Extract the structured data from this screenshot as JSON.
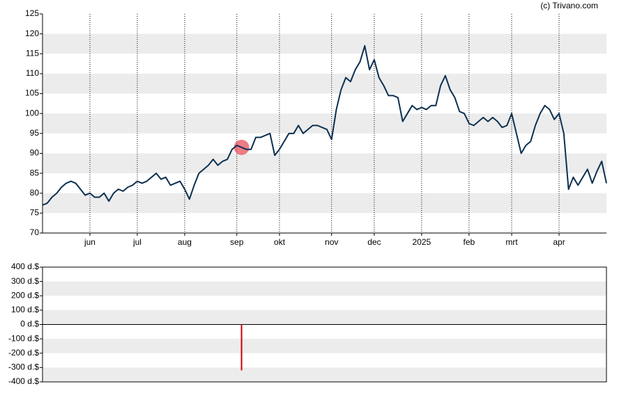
{
  "credit": "(c) Trivano.com",
  "chart_data": [
    {
      "type": "line",
      "color": "#0b3050",
      "marker_color": "#e8505c",
      "ylim": [
        70,
        125
      ],
      "yticks": [
        70,
        75,
        80,
        85,
        90,
        95,
        100,
        105,
        110,
        115,
        120,
        125
      ],
      "grid": true,
      "categories": [
        null,
        null,
        null,
        null,
        null,
        null,
        null,
        null,
        null,
        null,
        "jun",
        null,
        null,
        null,
        null,
        null,
        null,
        null,
        null,
        null,
        "jul",
        null,
        null,
        null,
        null,
        null,
        null,
        null,
        null,
        null,
        "aug",
        null,
        null,
        null,
        null,
        null,
        null,
        null,
        null,
        null,
        null,
        "sep",
        null,
        null,
        null,
        null,
        null,
        null,
        null,
        null,
        "okt",
        null,
        null,
        null,
        null,
        null,
        null,
        null,
        null,
        null,
        null,
        "nov",
        null,
        null,
        null,
        null,
        null,
        null,
        null,
        null,
        "dec",
        null,
        null,
        null,
        null,
        null,
        null,
        null,
        null,
        null,
        "2025",
        null,
        null,
        null,
        null,
        null,
        null,
        null,
        null,
        null,
        "feb",
        null,
        null,
        null,
        null,
        null,
        null,
        null,
        null,
        "mrt",
        null,
        null,
        null,
        null,
        null,
        null,
        null,
        null,
        null,
        "apr",
        null,
        null,
        null,
        null,
        null,
        null,
        null,
        null,
        null,
        null
      ],
      "values": [
        77,
        77.5,
        79,
        80,
        81.5,
        82.5,
        83,
        82.5,
        81,
        79.5,
        80,
        79,
        79,
        80,
        78,
        80,
        81,
        80.5,
        81.5,
        82,
        83,
        82.5,
        83,
        84,
        85,
        83.5,
        84,
        82,
        82.5,
        83,
        81,
        78.5,
        82,
        85,
        86,
        87,
        88.5,
        87,
        88,
        88.5,
        91,
        92,
        91.5,
        91,
        91,
        94,
        94,
        94.5,
        95,
        89.5,
        91,
        93,
        95,
        95,
        97,
        95,
        96,
        97,
        97,
        96.5,
        96,
        93.5,
        101,
        106,
        109,
        108,
        111,
        113,
        117,
        111,
        113.5,
        109,
        107,
        104.5,
        104.5,
        104,
        98,
        100,
        102,
        101,
        101.5,
        101,
        102,
        102,
        107,
        109.5,
        106,
        104,
        100.5,
        100,
        97.5,
        97,
        98,
        99,
        98,
        99,
        98,
        96.5,
        97,
        100,
        95,
        90,
        92,
        93,
        97,
        100,
        102,
        101,
        98.5,
        100,
        95,
        81,
        84,
        82,
        84,
        86,
        82.5,
        85.5,
        88,
        82.5
      ]
    },
    {
      "type": "bar",
      "color": "#cc0000",
      "ylim": [
        -400,
        400
      ],
      "yticks": [
        {
          "value": -400,
          "label": "-400 d.$"
        },
        {
          "value": -300,
          "label": "-300 d.$"
        },
        {
          "value": -200,
          "label": "-200 d.$"
        },
        {
          "value": -100,
          "label": "-100 d.$"
        },
        {
          "value": 0,
          "label": "0 d.$"
        },
        {
          "value": 100,
          "label": "100 d.$"
        },
        {
          "value": 200,
          "label": "200 d.$"
        },
        {
          "value": 300,
          "label": "300 d.$"
        },
        {
          "value": 400,
          "label": "400 d.$"
        }
      ],
      "grid": true,
      "values": [
        null,
        null,
        null,
        null,
        null,
        null,
        null,
        null,
        null,
        null,
        null,
        null,
        null,
        null,
        null,
        null,
        null,
        null,
        null,
        null,
        null,
        null,
        null,
        null,
        null,
        null,
        null,
        null,
        null,
        null,
        null,
        null,
        null,
        null,
        null,
        null,
        null,
        null,
        null,
        null,
        null,
        null,
        -320,
        null,
        null,
        null,
        null,
        null,
        null,
        null,
        null,
        null,
        null,
        null,
        null,
        null,
        null,
        null,
        null,
        null,
        null,
        null,
        null,
        null,
        null,
        null,
        null,
        null,
        null,
        null,
        null,
        null,
        null,
        null,
        null,
        null,
        null,
        null,
        null,
        null,
        null,
        null,
        null,
        null,
        null,
        null,
        null,
        null,
        null,
        null,
        null,
        null,
        null,
        null,
        null,
        null,
        null,
        null,
        null,
        null,
        null,
        null,
        null,
        null,
        null,
        null,
        null,
        null,
        null,
        null,
        null,
        null,
        null,
        null,
        null,
        null,
        null,
        null,
        null,
        null
      ]
    }
  ]
}
